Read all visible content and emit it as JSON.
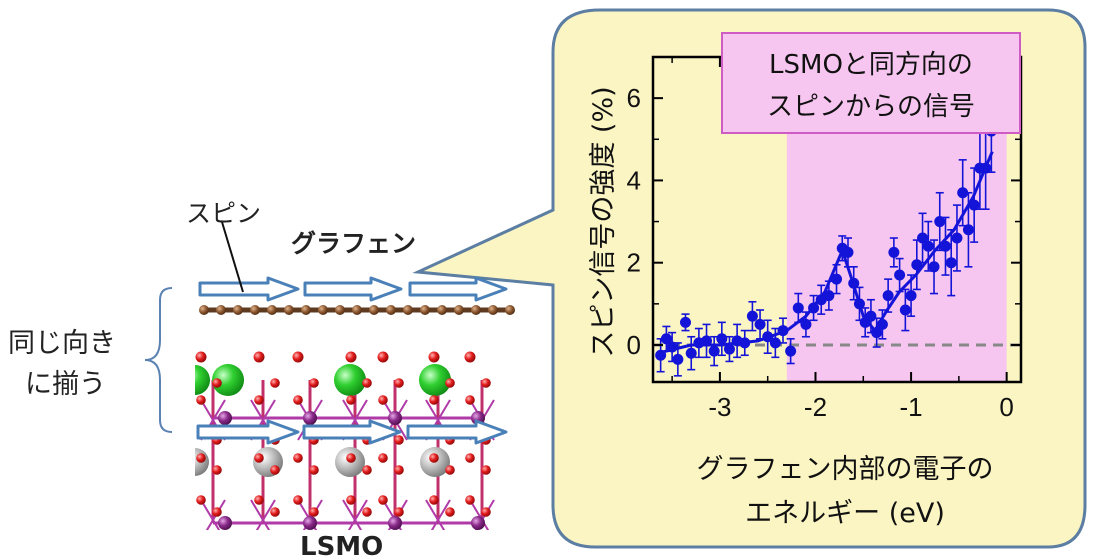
{
  "labels": {
    "spin": "スピン",
    "graphene": "グラフェン",
    "same_direction_line1": "同じ向き",
    "same_direction_line2": "に揃う",
    "lsmo": "LSMO"
  },
  "colors": {
    "callout_fill": "#fbf5c3",
    "callout_stroke": "#5b7ea2",
    "highlight_fill": "#f6c6f0",
    "data_blue": "#1414d8",
    "arrow_fill": "#ffffff",
    "arrow_stroke": "#4a80b8",
    "carbon": "#7a4a2a",
    "oxygen": "#e02020",
    "manganese": "#8a2a8a",
    "strontium": "#22c32a",
    "lanthanum": "#b8b8b8"
  },
  "chart_data": {
    "type": "scatter",
    "ylabel": "スピン信号の強度 (%)",
    "xlabel_line1": "グラフェン内部の電子の",
    "xlabel_line2": "エネルギー (eV)",
    "xlim": [
      -3.7,
      0.15
    ],
    "ylim": [
      -0.9,
      7.0
    ],
    "xticks": [
      -3,
      -2,
      -1,
      0
    ],
    "yticks": [
      0,
      2,
      4,
      6
    ],
    "highlight_range": [
      -2.3,
      0.0
    ],
    "annotation": {
      "line1": "LSMOと同方向の",
      "line2": "スピンからの信号"
    },
    "baseline_y": 0,
    "points": [
      {
        "x": -3.62,
        "y": -0.25,
        "err": 0.4
      },
      {
        "x": -3.56,
        "y": 0.15,
        "err": 0.3
      },
      {
        "x": -3.5,
        "y": -0.05,
        "err": 0.35
      },
      {
        "x": -3.44,
        "y": -0.35,
        "err": 0.4
      },
      {
        "x": -3.36,
        "y": 0.55,
        "err": 0.2
      },
      {
        "x": -3.3,
        "y": -0.2,
        "err": 0.4
      },
      {
        "x": -3.22,
        "y": 0.05,
        "err": 0.35
      },
      {
        "x": -3.14,
        "y": 0.1,
        "err": 0.4
      },
      {
        "x": -3.06,
        "y": -0.15,
        "err": 0.35
      },
      {
        "x": -2.98,
        "y": 0.15,
        "err": 0.4
      },
      {
        "x": -2.9,
        "y": -0.1,
        "err": 0.3
      },
      {
        "x": -2.82,
        "y": 0.1,
        "err": 0.4
      },
      {
        "x": -2.74,
        "y": 0.05,
        "err": 0.3
      },
      {
        "x": -2.66,
        "y": 0.7,
        "err": 0.35
      },
      {
        "x": -2.58,
        "y": 0.5,
        "err": 0.35
      },
      {
        "x": -2.5,
        "y": 0.2,
        "err": 0.4
      },
      {
        "x": -2.42,
        "y": 0.05,
        "err": 0.35
      },
      {
        "x": -2.34,
        "y": 0.35,
        "err": 0.3
      },
      {
        "x": -2.26,
        "y": -0.15,
        "err": 0.3
      },
      {
        "x": -2.18,
        "y": 0.9,
        "err": 0.35
      },
      {
        "x": -2.1,
        "y": 0.5,
        "err": 0.3
      },
      {
        "x": -2.02,
        "y": 0.9,
        "err": 0.3
      },
      {
        "x": -1.94,
        "y": 1.1,
        "err": 0.35
      },
      {
        "x": -1.86,
        "y": 1.2,
        "err": 0.35
      },
      {
        "x": -1.78,
        "y": 1.6,
        "err": 0.35
      },
      {
        "x": -1.72,
        "y": 2.35,
        "err": 0.3
      },
      {
        "x": -1.66,
        "y": 2.25,
        "err": 0.35
      },
      {
        "x": -1.6,
        "y": 1.5,
        "err": 0.4
      },
      {
        "x": -1.54,
        "y": 1.0,
        "err": 0.4
      },
      {
        "x": -1.48,
        "y": 0.55,
        "err": 0.35
      },
      {
        "x": -1.42,
        "y": 0.7,
        "err": 0.4
      },
      {
        "x": -1.36,
        "y": 0.3,
        "err": 0.35
      },
      {
        "x": -1.3,
        "y": 0.5,
        "err": 0.35
      },
      {
        "x": -1.24,
        "y": 1.2,
        "err": 0.4
      },
      {
        "x": -1.18,
        "y": 2.25,
        "err": 0.35
      },
      {
        "x": -1.12,
        "y": 1.7,
        "err": 0.4
      },
      {
        "x": -1.06,
        "y": 0.85,
        "err": 0.5
      },
      {
        "x": -1.0,
        "y": 1.2,
        "err": 0.5
      },
      {
        "x": -0.94,
        "y": 1.95,
        "err": 0.6
      },
      {
        "x": -0.88,
        "y": 2.6,
        "err": 0.6
      },
      {
        "x": -0.82,
        "y": 2.4,
        "err": 0.6
      },
      {
        "x": -0.76,
        "y": 1.9,
        "err": 0.65
      },
      {
        "x": -0.7,
        "y": 3.0,
        "err": 0.7
      },
      {
        "x": -0.64,
        "y": 2.4,
        "err": 0.7
      },
      {
        "x": -0.58,
        "y": 2.0,
        "err": 0.8
      },
      {
        "x": -0.52,
        "y": 2.6,
        "err": 0.8
      },
      {
        "x": -0.46,
        "y": 3.7,
        "err": 0.8
      },
      {
        "x": -0.4,
        "y": 2.8,
        "err": 0.9
      },
      {
        "x": -0.34,
        "y": 3.4,
        "err": 0.9
      },
      {
        "x": -0.28,
        "y": 4.3,
        "err": 1.0
      },
      {
        "x": -0.22,
        "y": 4.3,
        "err": 1.0
      },
      {
        "x": -0.16,
        "y": 5.2,
        "err": 1.0
      }
    ],
    "fit_line": [
      {
        "x": -3.65,
        "y": -0.2
      },
      {
        "x": -3.3,
        "y": 0.0
      },
      {
        "x": -3.0,
        "y": 0.0
      },
      {
        "x": -2.6,
        "y": 0.1
      },
      {
        "x": -2.3,
        "y": 0.35
      },
      {
        "x": -2.1,
        "y": 0.7
      },
      {
        "x": -1.9,
        "y": 1.3
      },
      {
        "x": -1.72,
        "y": 2.3
      },
      {
        "x": -1.62,
        "y": 1.6
      },
      {
        "x": -1.5,
        "y": 0.7
      },
      {
        "x": -1.38,
        "y": 0.35
      },
      {
        "x": -1.25,
        "y": 0.85
      },
      {
        "x": -1.12,
        "y": 1.3
      },
      {
        "x": -0.95,
        "y": 1.7
      },
      {
        "x": -0.75,
        "y": 2.3
      },
      {
        "x": -0.55,
        "y": 2.8
      },
      {
        "x": -0.35,
        "y": 3.6
      },
      {
        "x": -0.15,
        "y": 4.7
      }
    ]
  }
}
